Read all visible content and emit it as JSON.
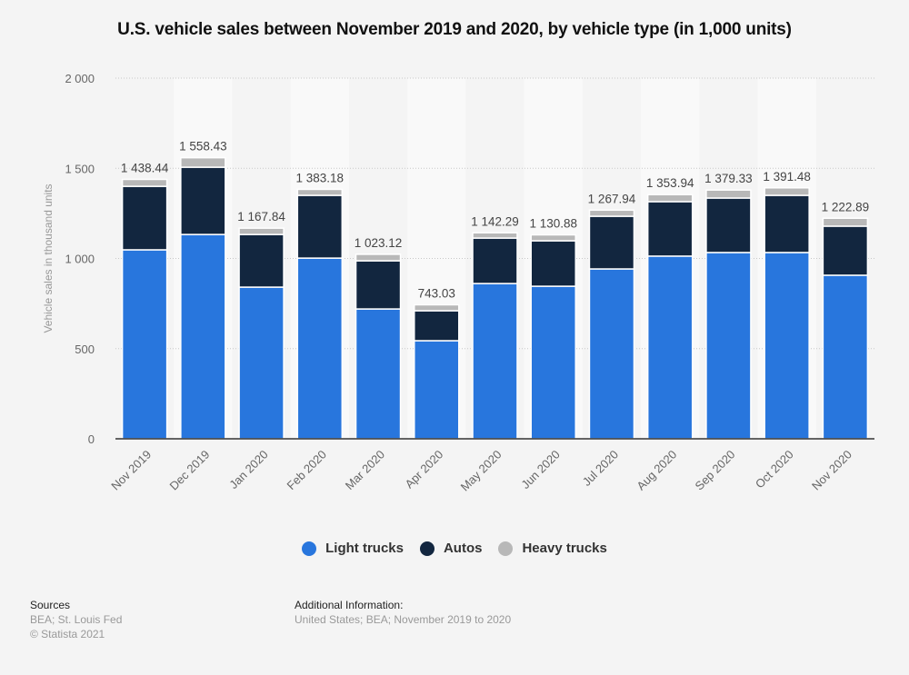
{
  "title": "U.S. vehicle sales between November 2019 and 2020, by vehicle type (in 1,000 units)",
  "chart_data": {
    "type": "bar",
    "stacked": true,
    "title": "U.S. vehicle sales between November 2019 and 2020, by vehicle type (in 1,000 units)",
    "xlabel": "",
    "ylabel": "Vehicle sales in thousand units",
    "ylim": [
      0,
      2000
    ],
    "yticks": [
      0,
      500,
      1000,
      1500,
      2000
    ],
    "ytick_labels": [
      "0",
      "500",
      "1 000",
      "1 500",
      "2 000"
    ],
    "grid": true,
    "legend_position": "bottom",
    "categories": [
      "Nov 2019",
      "Dec 2019",
      "Jan 2020",
      "Feb 2020",
      "Mar 2020",
      "Apr 2020",
      "May 2020",
      "Jun 2020",
      "Jul 2020",
      "Aug 2020",
      "Sep 2020",
      "Oct 2020",
      "Nov 2020"
    ],
    "series": [
      {
        "name": "Light trucks",
        "color": "#2876dd",
        "values": [
          1048,
          1133,
          841,
          1002,
          720,
          544,
          861,
          846,
          942,
          1013,
          1033,
          1033,
          907
        ]
      },
      {
        "name": "Autos",
        "color": "#12263f",
        "values": [
          352,
          373,
          292,
          348,
          267,
          166,
          252,
          252,
          292,
          302,
          302,
          317,
          272
        ]
      },
      {
        "name": "Heavy trucks",
        "color": "#b8b8b8",
        "values": [
          38.44,
          52.43,
          34.84,
          33.18,
          36.12,
          33.03,
          29.29,
          32.88,
          33.94,
          38.94,
          44.33,
          41.48,
          43.89
        ]
      }
    ],
    "totals": [
      1438.44,
      1558.43,
      1167.84,
      1383.18,
      1023.12,
      743.03,
      1142.29,
      1130.88,
      1267.94,
      1353.94,
      1379.33,
      1391.48,
      1222.89
    ],
    "total_labels": [
      "1 438.44",
      "1 558.43",
      "1 167.84",
      "1 383.18",
      "1 023.12",
      "743.03",
      "1 142.29",
      "1 130.88",
      "1 267.94",
      "1 353.94",
      "1 379.33",
      "1 391.48",
      "1 222.89"
    ]
  },
  "legend": [
    {
      "label": "Light trucks",
      "color": "#2876dd"
    },
    {
      "label": "Autos",
      "color": "#12263f"
    },
    {
      "label": "Heavy trucks",
      "color": "#b8b8b8"
    }
  ],
  "footer": {
    "sources_heading": "Sources",
    "sources_line1": "BEA; St. Louis Fed",
    "sources_line2": "© Statista 2021",
    "additional_heading": "Additional Information:",
    "additional_text": "United States; BEA; November 2019 to 2020"
  }
}
